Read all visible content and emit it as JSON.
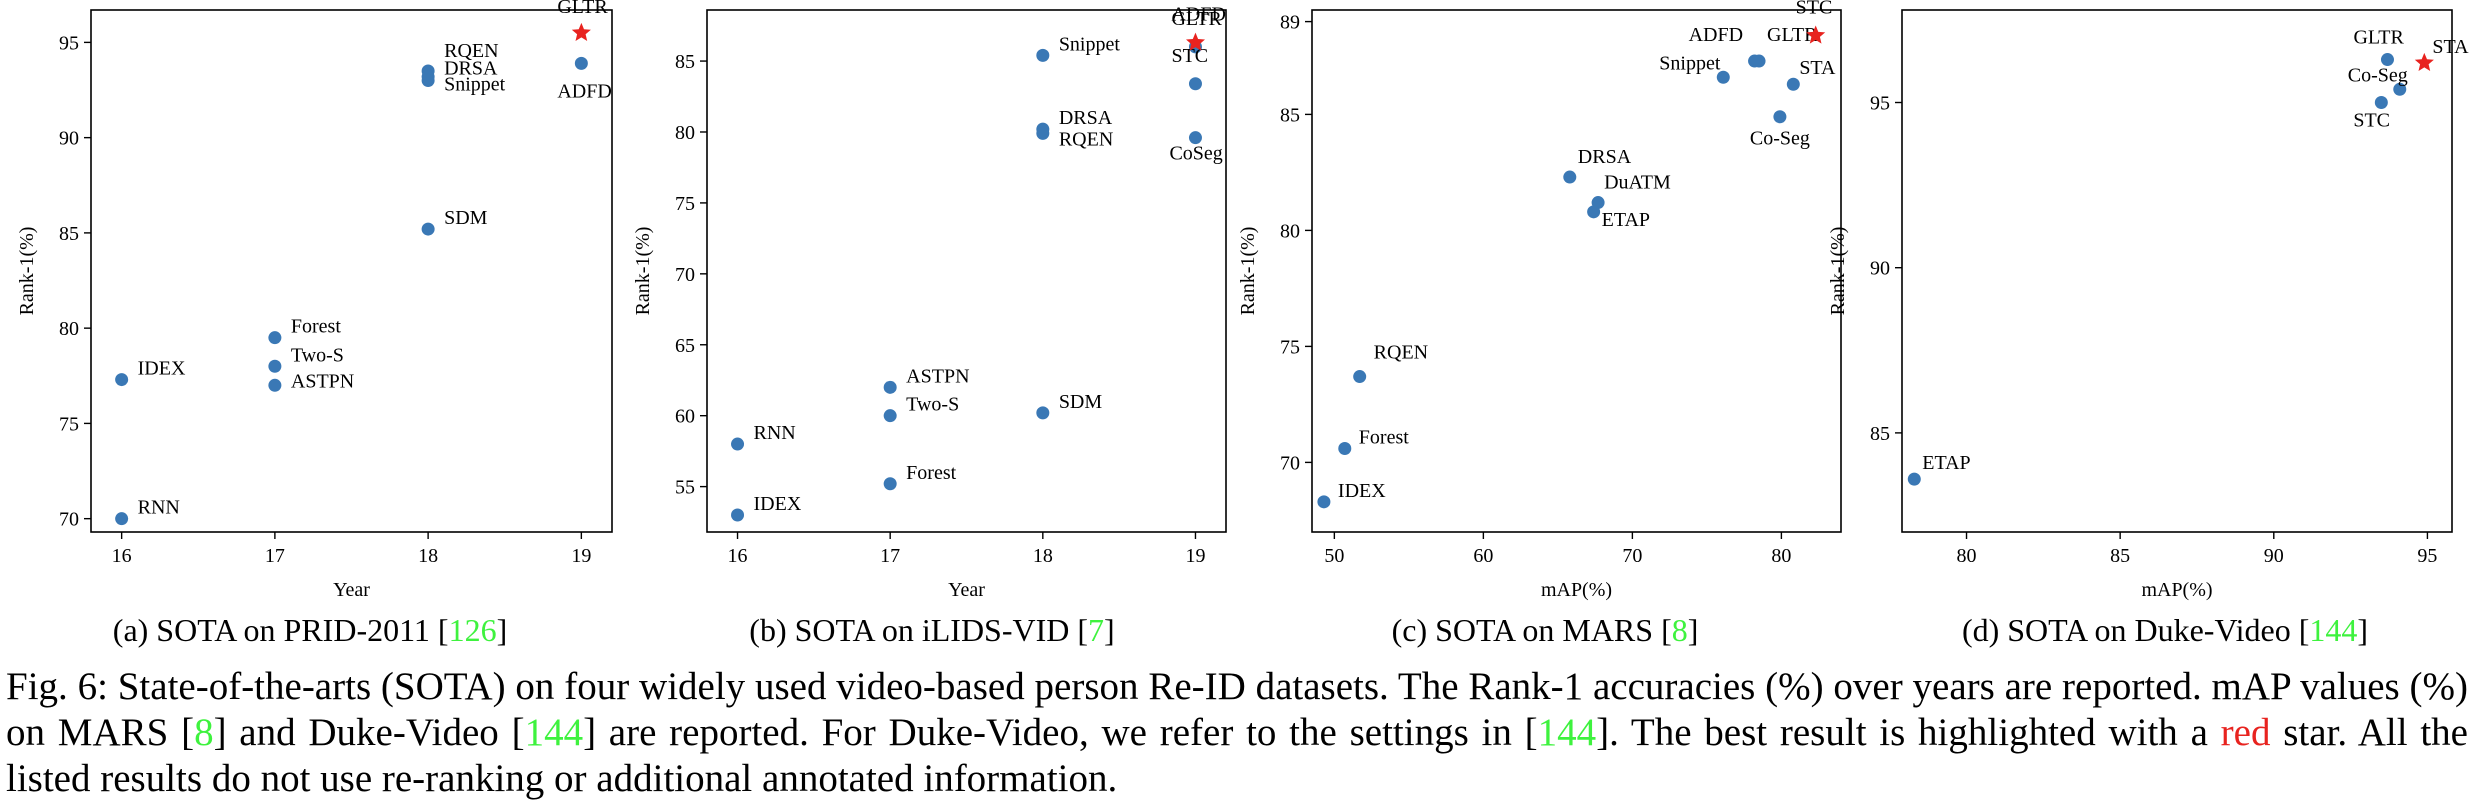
{
  "chart_data": [
    {
      "type": "scatter",
      "xlabel": "Year",
      "ylabel": "Rank-1(%)",
      "xlim": [
        15.8,
        19.2
      ],
      "ylim": [
        69.3,
        96.7
      ],
      "xticks": [
        16,
        17,
        18,
        19
      ],
      "yticks": [
        70,
        75,
        80,
        85,
        90,
        95
      ],
      "grid": false,
      "points": [
        {
          "label": "RNN",
          "x": 16,
          "y": 70.0
        },
        {
          "label": "IDEX",
          "x": 16,
          "y": 77.3
        },
        {
          "label": "Forest",
          "x": 17,
          "y": 79.5
        },
        {
          "label": "Two-S",
          "x": 17,
          "y": 78.0
        },
        {
          "label": "ASTPN",
          "x": 17,
          "y": 77.0
        },
        {
          "label": "SDM",
          "x": 18,
          "y": 85.2
        },
        {
          "label": "RQEN",
          "x": 18,
          "y": 93.5
        },
        {
          "label": "DRSA",
          "x": 18,
          "y": 93.2
        },
        {
          "label": "Snippet",
          "x": 18,
          "y": 93.0
        },
        {
          "label": "ADFD",
          "x": 19,
          "y": 93.9
        },
        {
          "label": "GLTR",
          "x": 19,
          "y": 95.5,
          "best": true
        }
      ]
    },
    {
      "type": "scatter",
      "xlabel": "Year",
      "ylabel": "Rank-1(%)",
      "xlim": [
        15.8,
        19.2
      ],
      "ylim": [
        51.8,
        88.6
      ],
      "xticks": [
        16,
        17,
        18,
        19
      ],
      "yticks": [
        55,
        60,
        65,
        70,
        75,
        80,
        85
      ],
      "grid": false,
      "points": [
        {
          "label": "RNN",
          "x": 16,
          "y": 58.0
        },
        {
          "label": "IDEX",
          "x": 16,
          "y": 53.0
        },
        {
          "label": "ASTPN",
          "x": 17,
          "y": 62.0
        },
        {
          "label": "Two-S",
          "x": 17,
          "y": 60.0
        },
        {
          "label": "Forest",
          "x": 17,
          "y": 55.2
        },
        {
          "label": "SDM",
          "x": 18,
          "y": 60.2
        },
        {
          "label": "Snippet",
          "x": 18,
          "y": 85.4
        },
        {
          "label": "DRSA",
          "x": 18,
          "y": 80.2
        },
        {
          "label": "RQEN",
          "x": 18,
          "y": 79.9
        },
        {
          "label": "GLTR",
          "x": 19,
          "y": 86.0
        },
        {
          "label": "STC",
          "x": 19,
          "y": 83.4
        },
        {
          "label": "CoSeg",
          "x": 19,
          "y": 79.6
        },
        {
          "label": "ADFD",
          "x": 19,
          "y": 86.3,
          "best": true
        }
      ]
    },
    {
      "type": "scatter",
      "xlabel": "mAP(%)",
      "ylabel": "Rank-1(%)",
      "xlim": [
        48.5,
        84.0
      ],
      "ylim": [
        67.0,
        89.5
      ],
      "xticks": [
        50,
        60,
        70,
        80
      ],
      "yticks": [
        70,
        75,
        80,
        85,
        89
      ],
      "grid": false,
      "points": [
        {
          "label": "IDEX",
          "x": 49.3,
          "y": 68.3
        },
        {
          "label": "Forest",
          "x": 50.7,
          "y": 70.6
        },
        {
          "label": "RQEN",
          "x": 51.7,
          "y": 73.7
        },
        {
          "label": "DRSA",
          "x": 65.8,
          "y": 82.3
        },
        {
          "label": "DuATM",
          "x": 67.7,
          "y": 81.2
        },
        {
          "label": "ETAP",
          "x": 67.4,
          "y": 80.8
        },
        {
          "label": "Snippet",
          "x": 76.1,
          "y": 86.6
        },
        {
          "label": "ADFD",
          "x": 78.2,
          "y": 87.3
        },
        {
          "label": "GLTR",
          "x": 78.5,
          "y": 87.3
        },
        {
          "label": "STA",
          "x": 80.8,
          "y": 86.3
        },
        {
          "label": "Co-Seg",
          "x": 79.9,
          "y": 84.9
        },
        {
          "label": "STC",
          "x": 82.3,
          "y": 88.4,
          "best": true
        }
      ]
    },
    {
      "type": "scatter",
      "xlabel": "mAP(%)",
      "ylabel": "Rank-1(%)",
      "xlim": [
        77.9,
        95.8
      ],
      "ylim": [
        82.0,
        97.8
      ],
      "xticks": [
        80,
        85,
        90,
        95
      ],
      "yticks": [
        85,
        90,
        95
      ],
      "grid": false,
      "points": [
        {
          "label": "ETAP",
          "x": 78.3,
          "y": 83.6
        },
        {
          "label": "GLTR",
          "x": 93.7,
          "y": 96.3
        },
        {
          "label": "Co-Seg",
          "x": 94.1,
          "y": 95.4
        },
        {
          "label": "STC",
          "x": 93.5,
          "y": 95.0
        },
        {
          "label": "STA",
          "x": 94.9,
          "y": 96.2,
          "best": true
        }
      ]
    }
  ],
  "subcaptions": [
    {
      "prefix": "(a) SOTA on PRID-2011 [",
      "ref": "126",
      "suffix": "]"
    },
    {
      "prefix": "(b) SOTA on iLIDS-VID [",
      "ref": "7",
      "suffix": "]"
    },
    {
      "prefix": "(c) SOTA on MARS [",
      "ref": "8",
      "suffix": "]"
    },
    {
      "prefix": "(d) SOTA on Duke-Video [",
      "ref": "144",
      "suffix": "]"
    }
  ],
  "caption": {
    "t1": "Fig. 6: State-of-the-arts (SOTA) on four widely used video-based person Re-ID datasets. The Rank-1 accuracies (%) over years are reported. mAP values (%) on MARS [",
    "r1": "8",
    "t2": "] and Duke-Video [",
    "r2": "144",
    "t3": "] are reported. For Duke-Video, we refer to the settings in [",
    "r3": "144",
    "t4": "]. The best result is highlighted with a ",
    "red": "red",
    "t5": " star. All the listed results do not use re-ranking or additional annotated information."
  },
  "colors": {
    "point": "#3a78b5",
    "star": "#e8231f",
    "ref": "#3ef23e"
  }
}
